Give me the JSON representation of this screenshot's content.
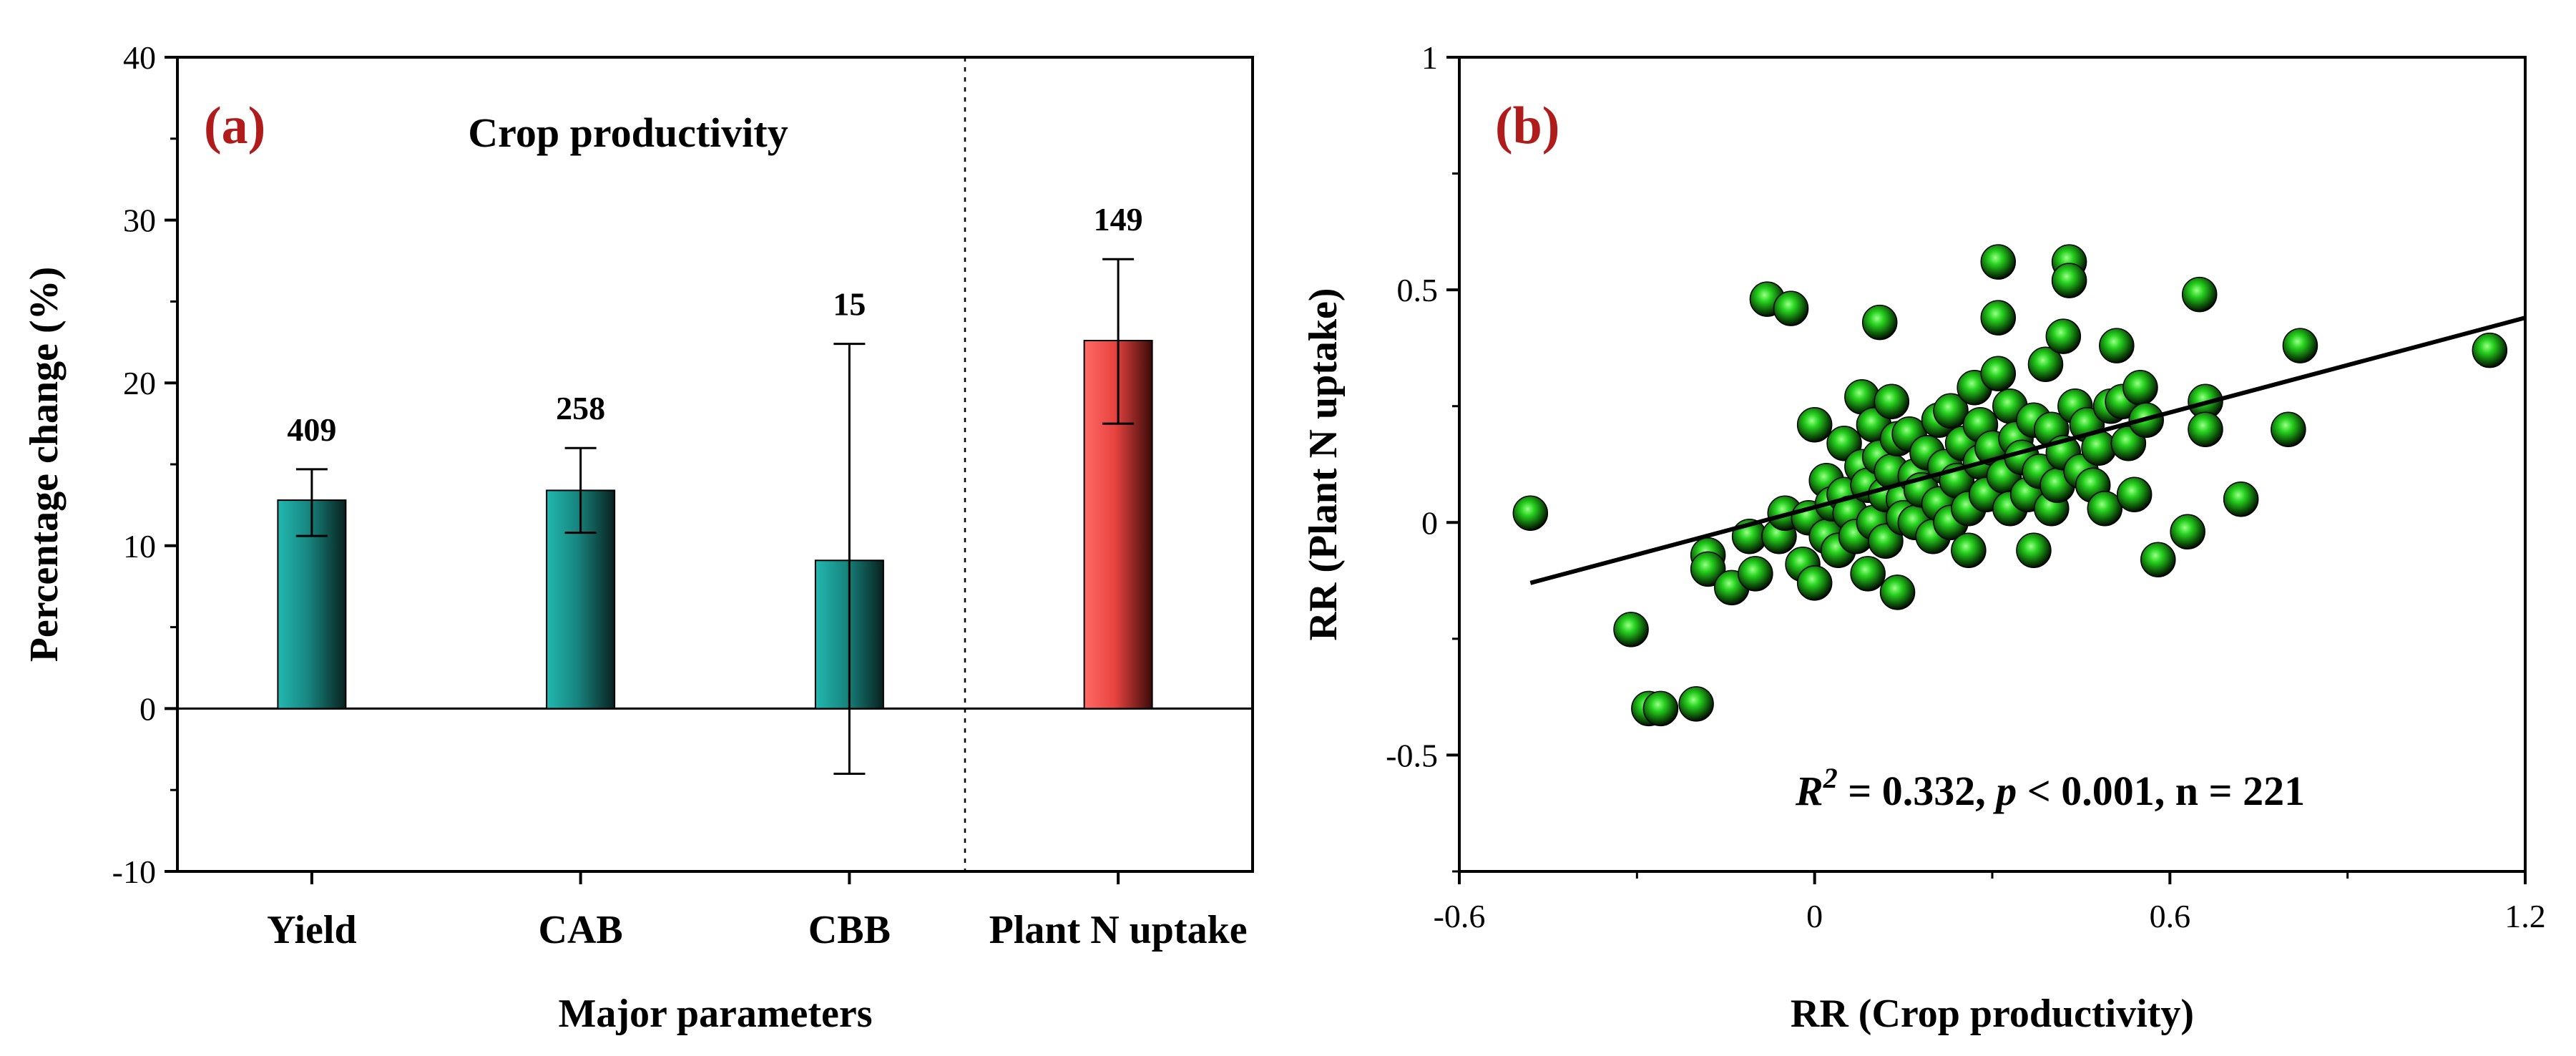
{
  "chart_data": [
    {
      "panel": "(a)",
      "type": "bar",
      "title": "Crop productivity",
      "xlabel": "Major parameters",
      "ylabel": "Percentage change (%)",
      "ylim": [
        -10,
        40
      ],
      "yticks": [
        -10,
        0,
        10,
        20,
        30,
        40
      ],
      "grid": false,
      "categories": [
        "Yield",
        "CAB",
        "CBB",
        "Plant N uptake"
      ],
      "values": [
        12.8,
        13.4,
        9.1,
        22.6
      ],
      "err_low": [
        10.6,
        10.8,
        -4.0,
        17.5
      ],
      "err_high": [
        14.7,
        16.0,
        22.4,
        27.6
      ],
      "n_labels": [
        "409",
        "258",
        "15",
        "149"
      ],
      "bar_colors": [
        "#1a8a86",
        "#1a8a86",
        "#1a8a86",
        "#e8433f"
      ],
      "separator_after_index": 2
    },
    {
      "panel": "(b)",
      "type": "scatter",
      "xlabel": "RR (Crop productivity)",
      "ylabel": "RR (Plant N uptake)",
      "xlim": [
        -0.6,
        1.2
      ],
      "ylim": [
        -0.75,
        1.0
      ],
      "xticks": [
        -0.6,
        0,
        0.6,
        1.2
      ],
      "xtick_labels": [
        "-0.6",
        "0",
        "0.6",
        "1.2"
      ],
      "yticks": [
        -0.5,
        0,
        0.5,
        1
      ],
      "ytick_labels": [
        "-0.5",
        "0",
        "0.5",
        "1"
      ],
      "annotation": {
        "r2_symbol": "R",
        "r2_sup": "2",
        "r2_text": " = 0.332, ",
        "p_symbol": "p",
        "p_text": " < 0.001, n = 221"
      },
      "fit_line": {
        "x": [
          -0.48,
          1.2
        ],
        "y": [
          -0.13,
          0.44
        ]
      },
      "marker_color": "#2ecc2e",
      "points": [
        [
          -0.48,
          0.02
        ],
        [
          -0.31,
          -0.23
        ],
        [
          -0.28,
          -0.4
        ],
        [
          -0.26,
          -0.4
        ],
        [
          -0.2,
          -0.39
        ],
        [
          -0.18,
          -0.07
        ],
        [
          -0.18,
          -0.1
        ],
        [
          -0.14,
          -0.14
        ],
        [
          -0.11,
          -0.03
        ],
        [
          -0.1,
          -0.11
        ],
        [
          -0.08,
          0.48
        ],
        [
          -0.06,
          -0.03
        ],
        [
          -0.05,
          0.02
        ],
        [
          -0.04,
          0.46
        ],
        [
          -0.02,
          -0.09
        ],
        [
          -0.01,
          0.01
        ],
        [
          0.0,
          0.21
        ],
        [
          0.0,
          -0.13
        ],
        [
          0.02,
          0.09
        ],
        [
          0.02,
          -0.03
        ],
        [
          0.03,
          0.04
        ],
        [
          0.04,
          -0.06
        ],
        [
          0.05,
          0.17
        ],
        [
          0.05,
          0.06
        ],
        [
          0.06,
          0.02
        ],
        [
          0.07,
          -0.03
        ],
        [
          0.08,
          0.12
        ],
        [
          0.08,
          0.27
        ],
        [
          0.09,
          0.08
        ],
        [
          0.09,
          -0.11
        ],
        [
          0.1,
          0.0
        ],
        [
          0.1,
          0.21
        ],
        [
          0.11,
          0.14
        ],
        [
          0.11,
          0.43
        ],
        [
          0.12,
          0.06
        ],
        [
          0.12,
          -0.04
        ],
        [
          0.13,
          0.11
        ],
        [
          0.13,
          0.26
        ],
        [
          0.14,
          0.18
        ],
        [
          0.14,
          -0.15
        ],
        [
          0.15,
          0.05
        ],
        [
          0.15,
          0.01
        ],
        [
          0.16,
          0.19
        ],
        [
          0.17,
          0.1
        ],
        [
          0.17,
          0.0
        ],
        [
          0.18,
          0.07
        ],
        [
          0.19,
          0.15
        ],
        [
          0.2,
          -0.03
        ],
        [
          0.21,
          0.04
        ],
        [
          0.21,
          0.22
        ],
        [
          0.22,
          0.12
        ],
        [
          0.23,
          0.24
        ],
        [
          0.23,
          0.0
        ],
        [
          0.24,
          0.09
        ],
        [
          0.25,
          0.17
        ],
        [
          0.26,
          -0.06
        ],
        [
          0.26,
          0.03
        ],
        [
          0.27,
          0.29
        ],
        [
          0.28,
          0.13
        ],
        [
          0.28,
          0.21
        ],
        [
          0.29,
          0.06
        ],
        [
          0.3,
          0.16
        ],
        [
          0.31,
          0.56
        ],
        [
          0.31,
          0.44
        ],
        [
          0.31,
          0.32
        ],
        [
          0.32,
          0.1
        ],
        [
          0.33,
          0.25
        ],
        [
          0.33,
          0.03
        ],
        [
          0.34,
          0.18
        ],
        [
          0.35,
          0.14
        ],
        [
          0.36,
          0.06
        ],
        [
          0.37,
          0.22
        ],
        [
          0.37,
          -0.06
        ],
        [
          0.38,
          0.11
        ],
        [
          0.39,
          0.34
        ],
        [
          0.4,
          0.2
        ],
        [
          0.4,
          0.03
        ],
        [
          0.41,
          0.08
        ],
        [
          0.42,
          0.4
        ],
        [
          0.42,
          0.15
        ],
        [
          0.43,
          0.56
        ],
        [
          0.43,
          0.52
        ],
        [
          0.44,
          0.25
        ],
        [
          0.45,
          0.11
        ],
        [
          0.46,
          0.21
        ],
        [
          0.47,
          0.08
        ],
        [
          0.48,
          0.16
        ],
        [
          0.49,
          0.03
        ],
        [
          0.5,
          0.25
        ],
        [
          0.51,
          0.38
        ],
        [
          0.52,
          0.26
        ],
        [
          0.53,
          0.17
        ],
        [
          0.54,
          0.06
        ],
        [
          0.55,
          0.29
        ],
        [
          0.56,
          0.22
        ],
        [
          0.58,
          -0.08
        ],
        [
          0.63,
          -0.02
        ],
        [
          0.65,
          0.49
        ],
        [
          0.66,
          0.26
        ],
        [
          0.66,
          0.2
        ],
        [
          0.72,
          0.05
        ],
        [
          0.8,
          0.2
        ],
        [
          0.82,
          0.38
        ],
        [
          1.14,
          0.37
        ]
      ]
    }
  ]
}
